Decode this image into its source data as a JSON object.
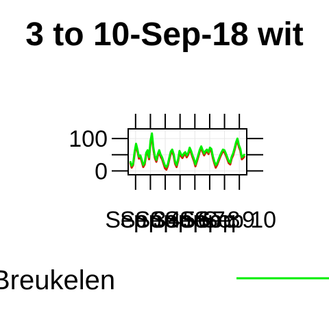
{
  "chart_data": {
    "type": "line",
    "title": "3 to 10-Sep-18 wit",
    "xlabel": "",
    "ylabel": "",
    "ylim": [
      -12,
      130
    ],
    "y_ticks": [
      0,
      100
    ],
    "x_tick_labels": [
      "Sep 3",
      "Sep 4",
      "Sep 5",
      "Sep 6",
      "Sep 7",
      "Sep 8",
      "Sep 9",
      "Sep 10"
    ],
    "grid": true,
    "legend": "bottom",
    "series": [
      {
        "name": "",
        "color": "#cc2200",
        "values": [
          26,
          10,
          18,
          52,
          78,
          60,
          38,
          42,
          28,
          12,
          20,
          50,
          58,
          36,
          88,
          100,
          66,
          40,
          28,
          46,
          58,
          44,
          36,
          22,
          8,
          4,
          16,
          36,
          54,
          60,
          46,
          22,
          12,
          30,
          56,
          46,
          40,
          48,
          52,
          42,
          50,
          66,
          56,
          42,
          30,
          14,
          28,
          44,
          60,
          70,
          58,
          48,
          56,
          60,
          52,
          66,
          62,
          40,
          24,
          10,
          18,
          30,
          42,
          52,
          60,
          58,
          48,
          36,
          24,
          20,
          38,
          48,
          64,
          82,
          94,
          74,
          62,
          36,
          40,
          46
        ]
      },
      {
        "name": "Breukelen",
        "color": "#00ee00",
        "values": [
          30,
          16,
          22,
          58,
          84,
          66,
          44,
          48,
          34,
          18,
          26,
          56,
          64,
          42,
          94,
          116,
          72,
          46,
          34,
          52,
          64,
          50,
          42,
          28,
          16,
          12,
          22,
          42,
          60,
          66,
          52,
          28,
          18,
          36,
          62,
          52,
          46,
          54,
          58,
          48,
          56,
          72,
          62,
          48,
          36,
          20,
          34,
          50,
          66,
          76,
          64,
          54,
          62,
          66,
          58,
          72,
          68,
          46,
          30,
          18,
          24,
          36,
          48,
          58,
          66,
          64,
          54,
          42,
          30,
          26,
          44,
          54,
          70,
          88,
          100,
          80,
          68,
          42,
          46,
          52
        ]
      }
    ]
  }
}
